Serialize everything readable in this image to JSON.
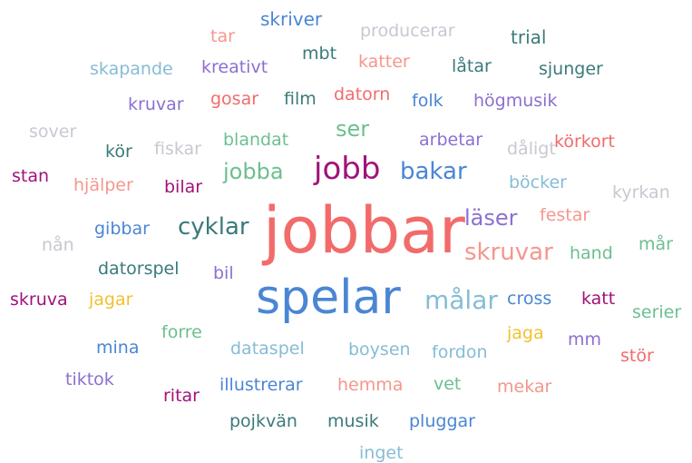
{
  "words": [
    {
      "text": "skriver",
      "color": "#4a86d4"
    },
    {
      "text": "producerar",
      "color": "#c8c8d2"
    },
    {
      "text": "tar",
      "color": "#f4978e"
    },
    {
      "text": "trial",
      "color": "#3a7a7a"
    },
    {
      "text": "mbt",
      "color": "#3a7a7a"
    },
    {
      "text": "katter",
      "color": "#f4978e"
    },
    {
      "text": "skapande",
      "color": "#86bcd6"
    },
    {
      "text": "kreativt",
      "color": "#8c6fd1"
    },
    {
      "text": "låtar",
      "color": "#3a7a7a"
    },
    {
      "text": "sjunger",
      "color": "#3a7a7a"
    },
    {
      "text": "kruvar",
      "color": "#8c6fd1"
    },
    {
      "text": "gosar",
      "color": "#f26b6b"
    },
    {
      "text": "film",
      "color": "#3a7a7a"
    },
    {
      "text": "datorn",
      "color": "#f26b6b"
    },
    {
      "text": "folk",
      "color": "#4a86d4"
    },
    {
      "text": "högmusik",
      "color": "#8c6fd1"
    },
    {
      "text": "sover",
      "color": "#c8c8d2"
    },
    {
      "text": "ser",
      "color": "#6dbf8f"
    },
    {
      "text": "kör",
      "color": "#3a7a7a"
    },
    {
      "text": "fiskar",
      "color": "#c8c8d2"
    },
    {
      "text": "blandat",
      "color": "#6dbf8f"
    },
    {
      "text": "arbetar",
      "color": "#8c6fd1"
    },
    {
      "text": "dåligt",
      "color": "#c8c8d2"
    },
    {
      "text": "körkort",
      "color": "#f26b6b"
    },
    {
      "text": "stan",
      "color": "#a0127a"
    },
    {
      "text": "hjälper",
      "color": "#f4978e"
    },
    {
      "text": "bilar",
      "color": "#a0127a"
    },
    {
      "text": "jobba",
      "color": "#6dbf8f"
    },
    {
      "text": "jobb",
      "color": "#a0127a"
    },
    {
      "text": "bakar",
      "color": "#4a86d4"
    },
    {
      "text": "böcker",
      "color": "#86bcd6"
    },
    {
      "text": "kyrkan",
      "color": "#c8c8d2"
    },
    {
      "text": "jobbar",
      "color": "#f26b6b"
    },
    {
      "text": "festar",
      "color": "#f4978e"
    },
    {
      "text": "läser",
      "color": "#8c6fd1"
    },
    {
      "text": "gibbar",
      "color": "#4a86d4"
    },
    {
      "text": "cyklar",
      "color": "#3a7a7a"
    },
    {
      "text": "nån",
      "color": "#c8c8d2"
    },
    {
      "text": "skruvar",
      "color": "#f4978e"
    },
    {
      "text": "hand",
      "color": "#6dbf8f"
    },
    {
      "text": "mår",
      "color": "#6dbf8f"
    },
    {
      "text": "datorspel",
      "color": "#3a7a7a"
    },
    {
      "text": "bil",
      "color": "#8c6fd1"
    },
    {
      "text": "spelar",
      "color": "#4a86d4"
    },
    {
      "text": "skruva",
      "color": "#a0127a"
    },
    {
      "text": "jagar",
      "color": "#f2c12e"
    },
    {
      "text": "målar",
      "color": "#86bcd6"
    },
    {
      "text": "cross",
      "color": "#4a86d4"
    },
    {
      "text": "katt",
      "color": "#a0127a"
    },
    {
      "text": "serier",
      "color": "#6dbf8f"
    },
    {
      "text": "forre",
      "color": "#6dbf8f"
    },
    {
      "text": "jaga",
      "color": "#f2c12e"
    },
    {
      "text": "mm",
      "color": "#8c6fd1"
    },
    {
      "text": "mina",
      "color": "#4a86d4"
    },
    {
      "text": "dataspel",
      "color": "#86bcd6"
    },
    {
      "text": "boysen",
      "color": "#86bcd6"
    },
    {
      "text": "fordon",
      "color": "#86bcd6"
    },
    {
      "text": "stör",
      "color": "#f26b6b"
    },
    {
      "text": "tiktok",
      "color": "#8c6fd1"
    },
    {
      "text": "ritar",
      "color": "#a0127a"
    },
    {
      "text": "illustrerar",
      "color": "#4a86d4"
    },
    {
      "text": "hemma",
      "color": "#f4978e"
    },
    {
      "text": "vet",
      "color": "#6dbf8f"
    },
    {
      "text": "mekar",
      "color": "#f4978e"
    },
    {
      "text": "pojkvän",
      "color": "#3a7a7a"
    },
    {
      "text": "musik",
      "color": "#3a7a7a"
    },
    {
      "text": "pluggar",
      "color": "#4a86d4"
    },
    {
      "text": "inget",
      "color": "#86bcd6"
    }
  ]
}
